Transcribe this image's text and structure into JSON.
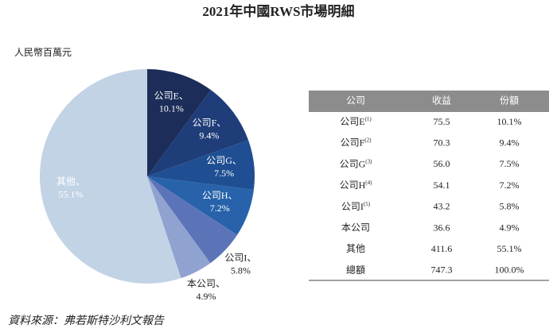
{
  "chart_data": {
    "type": "pie",
    "title": "2021年中國RWS市場明細",
    "unit": "人民幣百萬元",
    "categories": [
      "公司E、",
      "公司F、",
      "公司G、",
      "公司H、",
      "公司I、",
      "本公司、",
      "其他、"
    ],
    "values": [
      10.1,
      9.4,
      7.5,
      7.2,
      5.8,
      4.9,
      55.1
    ],
    "value_labels": [
      "10.1%",
      "9.4%",
      "7.5%",
      "7.2%",
      "5.8%",
      "4.9%",
      "55.1%"
    ],
    "colors": [
      "#1b2d58",
      "#1f3d78",
      "#1f4f92",
      "#2762aa",
      "#5b74b8",
      "#8fa2d0",
      "#c3d3e6"
    ]
  },
  "table": {
    "header": [
      "公司",
      "收益",
      "份額"
    ],
    "rows": [
      {
        "company": "公司E",
        "note": "(1)",
        "revenue": "75.5",
        "share": "10.1%"
      },
      {
        "company": "公司F",
        "note": "(2)",
        "revenue": "70.3",
        "share": "9.4%"
      },
      {
        "company": "公司G",
        "note": "(3)",
        "revenue": "56.0",
        "share": "7.5%"
      },
      {
        "company": "公司H",
        "note": "(4)",
        "revenue": "54.1",
        "share": "7.2%"
      },
      {
        "company": "公司I",
        "note": "(5)",
        "revenue": "43.2",
        "share": "5.8%"
      },
      {
        "company": "本公司",
        "revenue": "36.6",
        "share": "4.9%"
      },
      {
        "company": "其他",
        "revenue": "411.6",
        "share": "55.1%"
      },
      {
        "company": "總額",
        "revenue": "747.3",
        "share": "100.0%"
      }
    ]
  },
  "source": "資料來源：弗若斯特沙利文報告"
}
